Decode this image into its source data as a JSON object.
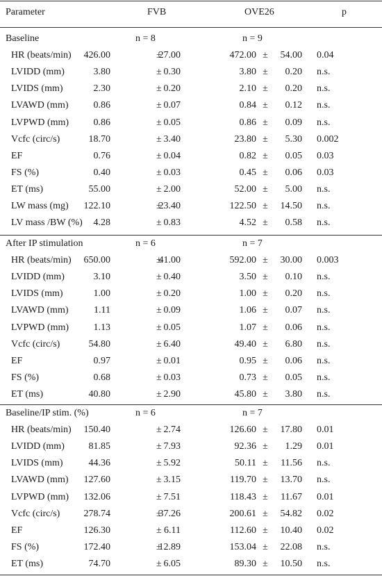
{
  "header": {
    "parameter": "Parameter",
    "fvb": "FVB",
    "ove": "OVE26",
    "p": "p"
  },
  "pm": "±",
  "sections": [
    {
      "title": "Baseline",
      "n_fvb": "n = 8",
      "n_ove": "n = 9",
      "rows": [
        {
          "param": "HR (beats/min)",
          "fvb_m": "426.00",
          "fvb_s": "27.00",
          "ove_m": "472.00",
          "ove_s": "54.00",
          "p": "0.04"
        },
        {
          "param": "LVIDD (mm)",
          "fvb_m": "3.80",
          "fvb_s": "0.30",
          "ove_m": "3.80",
          "ove_s": "0.20",
          "p": "n.s."
        },
        {
          "param": "LVIDS (mm)",
          "fvb_m": "2.30",
          "fvb_s": "0.20",
          "ove_m": "2.10",
          "ove_s": "0.20",
          "p": "n.s."
        },
        {
          "param": "LVAWD (mm)",
          "fvb_m": "0.86",
          "fvb_s": "0.07",
          "ove_m": "0.84",
          "ove_s": "0.12",
          "p": "n.s."
        },
        {
          "param": "LVPWD (mm)",
          "fvb_m": "0.86",
          "fvb_s": "0.05",
          "ove_m": "0.86",
          "ove_s": "0.09",
          "p": "n.s."
        },
        {
          "param": "Vcfc (circ/s)",
          "fvb_m": "18.70",
          "fvb_s": "3.40",
          "ove_m": "23.80",
          "ove_s": "5.30",
          "p": "0.002"
        },
        {
          "param": "EF",
          "fvb_m": "0.76",
          "fvb_s": "0.04",
          "ove_m": "0.82",
          "ove_s": "0.05",
          "p": "0.03"
        },
        {
          "param": "FS (%)",
          "fvb_m": "0.40",
          "fvb_s": "0.03",
          "ove_m": "0.45",
          "ove_s": "0.06",
          "p": "0.03"
        },
        {
          "param": "ET (ms)",
          "fvb_m": "55.00",
          "fvb_s": "2.00",
          "ove_m": "52.00",
          "ove_s": "5.00",
          "p": "n.s."
        },
        {
          "param": "LW mass (mg)",
          "fvb_m": "122.10",
          "fvb_s": "23.40",
          "ove_m": "122.50",
          "ove_s": "14.50",
          "p": "n.s."
        },
        {
          "param": "LV mass /BW (%)",
          "fvb_m": "4.28",
          "fvb_s": "0.83",
          "ove_m": "4.52",
          "ove_s": "0.58",
          "p": "n.s."
        }
      ]
    },
    {
      "title": "After IP stimulation",
      "n_fvb": "n = 6",
      "n_ove": "n = 7",
      "rows": [
        {
          "param": "HR (beats/min)",
          "fvb_m": "650.00",
          "fvb_s": "41.00",
          "ove_m": "592.00",
          "ove_s": "30.00",
          "p": "0.003"
        },
        {
          "param": "LVIDD (mm)",
          "fvb_m": "3.10",
          "fvb_s": "0.40",
          "ove_m": "3.50",
          "ove_s": "0.10",
          "p": "n.s."
        },
        {
          "param": "LVIDS (mm)",
          "fvb_m": "1.00",
          "fvb_s": "0.20",
          "ove_m": "1.00",
          "ove_s": "0.20",
          "p": "n.s."
        },
        {
          "param": "LVAWD (mm)",
          "fvb_m": "1.11",
          "fvb_s": "0.09",
          "ove_m": "1.06",
          "ove_s": "0.07",
          "p": "n.s."
        },
        {
          "param": "LVPWD (mm)",
          "fvb_m": "1.13",
          "fvb_s": "0.05",
          "ove_m": "1.07",
          "ove_s": "0.06",
          "p": "n.s."
        },
        {
          "param": "Vcfc (circ/s)",
          "fvb_m": "54.80",
          "fvb_s": "6.40",
          "ove_m": "49.40",
          "ove_s": "6.80",
          "p": "n.s."
        },
        {
          "param": "EF",
          "fvb_m": "0.97",
          "fvb_s": "0.01",
          "ove_m": "0.95",
          "ove_s": "0.06",
          "p": "n.s."
        },
        {
          "param": "FS (%)",
          "fvb_m": "0.68",
          "fvb_s": "0.03",
          "ove_m": "0.73",
          "ove_s": "0.05",
          "p": "n.s."
        },
        {
          "param": "ET (ms)",
          "fvb_m": "40.80",
          "fvb_s": "2.90",
          "ove_m": "45.80",
          "ove_s": "3.80",
          "p": "n.s."
        }
      ]
    },
    {
      "title": "Baseline/IP stim. (%)",
      "n_fvb": "n = 6",
      "n_ove": "n = 7",
      "rows": [
        {
          "param": "HR (beats/min)",
          "fvb_m": "150.40",
          "fvb_s": "2.74",
          "ove_m": "126.60",
          "ove_s": "17.80",
          "p": "0.01"
        },
        {
          "param": "LVIDD (mm)",
          "fvb_m": "81.85",
          "fvb_s": "7.93",
          "ove_m": "92.36",
          "ove_s": "1.29",
          "p": "0.01"
        },
        {
          "param": "LVIDS (mm)",
          "fvb_m": "44.36",
          "fvb_s": "5.92",
          "ove_m": "50.11",
          "ove_s": "11.56",
          "p": "n.s."
        },
        {
          "param": "LVAWD (mm)",
          "fvb_m": "127.60",
          "fvb_s": "3.15",
          "ove_m": "119.70",
          "ove_s": "13.70",
          "p": "n.s."
        },
        {
          "param": "LVPWD (mm)",
          "fvb_m": "132.06",
          "fvb_s": "7.51",
          "ove_m": "118.43",
          "ove_s": "11.67",
          "p": "0.01"
        },
        {
          "param": "Vcfc (circ/s)",
          "fvb_m": "278.74",
          "fvb_s": "37.26",
          "ove_m": "200.61",
          "ove_s": "54.82",
          "p": "0.02"
        },
        {
          "param": "EF",
          "fvb_m": "126.30",
          "fvb_s": "6.11",
          "ove_m": "112.60",
          "ove_s": "10.40",
          "p": "0.02"
        },
        {
          "param": "FS (%)",
          "fvb_m": "172.40",
          "fvb_s": "12.89",
          "ove_m": "153.04",
          "ove_s": "22.08",
          "p": "n.s."
        },
        {
          "param": "ET (ms)",
          "fvb_m": "74.70",
          "fvb_s": "6.05",
          "ove_m": "89.30",
          "ove_s": "10.50",
          "p": "n.s."
        }
      ]
    }
  ]
}
